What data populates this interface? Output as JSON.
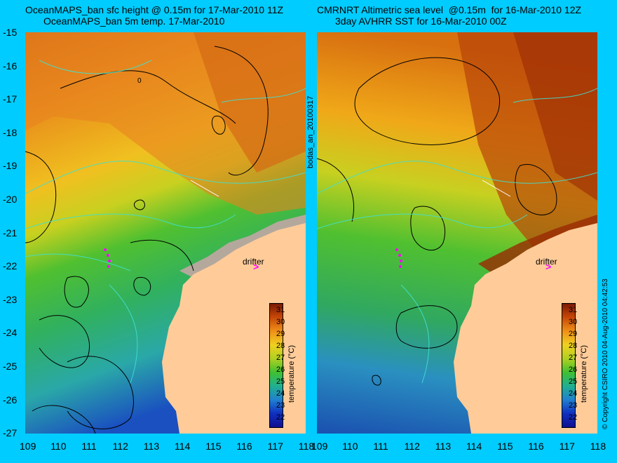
{
  "left_title": {
    "line1": "OceanMAPS_ban sfc height @ 0.15m for 17-Mar-2010 11Z",
    "line2": "OceanMAPS_ban 5m temp. 17-Mar-2010"
  },
  "right_title": {
    "line1": "CMRNRT Altimetric sea level  @0.15m  for 16-Mar-2010 12Z",
    "line2": "3day AVHRR SST for 16-Mar-2010 00Z"
  },
  "y_ticks": [
    "-15",
    "-16",
    "-17",
    "-18",
    "-19",
    "-20",
    "-21",
    "-22",
    "-23",
    "-24",
    "-25",
    "-26",
    "-27"
  ],
  "x_ticks": [
    "109",
    "110",
    "111",
    "112",
    "113",
    "114",
    "115",
    "116",
    "117",
    "118"
  ],
  "center_label": "bodas_an_20100317",
  "copyright": "© Copyright CSIRO 2010  04-Aug-2010 04:42:53",
  "drifter_label": "drifter",
  "contour_label": "0",
  "colorbar": {
    "title": "temperature (°C)",
    "ticks": [
      "31",
      "30",
      "29",
      "28",
      "27",
      "26",
      "25",
      "24",
      "23",
      "22"
    ]
  },
  "colors": {
    "background": "#00ccff",
    "land": "#ffcc99",
    "mask": "#b4a89c"
  }
}
